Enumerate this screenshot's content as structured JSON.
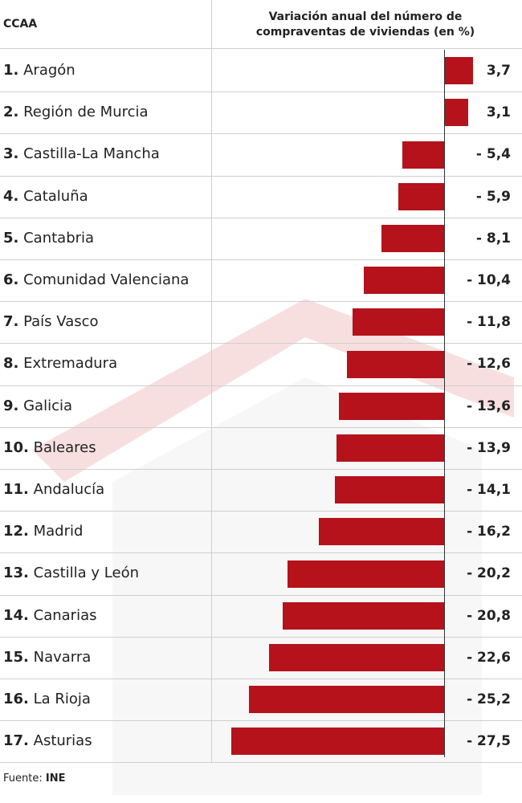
{
  "chart_data": {
    "type": "bar",
    "orientation": "horizontal",
    "category_header": "CCAA",
    "title": "Variación anual del número de compraventas de viviendas (en %)",
    "ranks": [
      "1.",
      "2.",
      "3.",
      "4.",
      "5.",
      "6.",
      "7.",
      "8.",
      "9.",
      "10.",
      "11.",
      "12.",
      "13.",
      "14.",
      "15.",
      "16.",
      "17."
    ],
    "categories": [
      "Aragón",
      "Región de Murcia",
      "Castilla-La Mancha",
      "Cataluña",
      "Cantabria",
      "Comunidad Valenciana",
      "País Vasco",
      "Extremadura",
      "Galicia",
      "Baleares",
      "Andalucía",
      "Madrid",
      "Castilla y León",
      "Canarias",
      "Navarra",
      "La Rioja",
      "Asturias"
    ],
    "values": [
      3.7,
      3.1,
      -5.4,
      -5.9,
      -8.1,
      -10.4,
      -11.8,
      -12.6,
      -13.6,
      -13.9,
      -14.1,
      -16.2,
      -20.2,
      -20.8,
      -22.6,
      -25.2,
      -27.5
    ],
    "value_labels": [
      "3,7",
      "3,1",
      "- 5,4",
      "- 5,9",
      "- 8,1",
      "- 10,4",
      "- 11,8",
      "- 12,6",
      "- 13,6",
      "- 13,9",
      "- 14,1",
      "- 16,2",
      "- 20,2",
      "- 20,8",
      "- 22,6",
      "- 25,2",
      "- 27,5"
    ],
    "color": "#b5121b",
    "source_label": "Fuente:",
    "source": "INE"
  }
}
